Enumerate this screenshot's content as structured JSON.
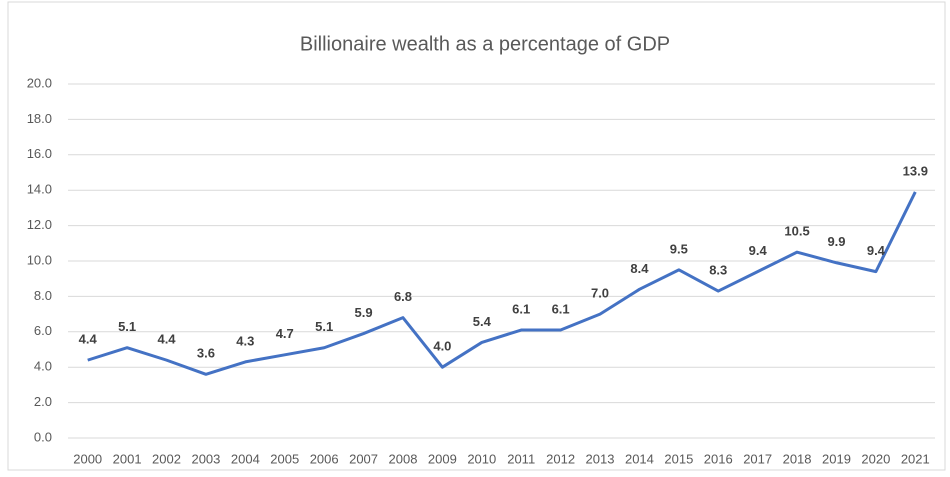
{
  "chart_data": {
    "type": "line",
    "title": "Billionaire wealth as a percentage of GDP",
    "categories": [
      "2000",
      "2001",
      "2002",
      "2003",
      "2004",
      "2005",
      "2006",
      "2007",
      "2008",
      "2009",
      "2010",
      "2011",
      "2012",
      "2013",
      "2014",
      "2015",
      "2016",
      "2017",
      "2018",
      "2019",
      "2020",
      "2021"
    ],
    "series": [
      {
        "color": "#4472c4",
        "values": [
          4.4,
          5.1,
          4.4,
          3.6,
          4.3,
          4.7,
          5.1,
          5.9,
          6.8,
          4.0,
          5.4,
          6.1,
          6.1,
          7.0,
          8.4,
          9.5,
          8.3,
          9.4,
          10.5,
          9.9,
          9.4,
          13.9
        ],
        "value_labels": [
          "4.4",
          "5.1",
          "4.4",
          "3.6",
          "4.3",
          "4.7",
          "5.1",
          "5.9",
          "6.8",
          "4.0",
          "5.4",
          "6.1",
          "6.1",
          "7.0",
          "8.4",
          "9.5",
          "8.3",
          "9.4",
          "10.5",
          "9.9",
          "9.4",
          "13.9"
        ]
      }
    ],
    "ylim": [
      0,
      20
    ],
    "yticks": [
      {
        "value": 0,
        "label": "0.0"
      },
      {
        "value": 2,
        "label": "2.0"
      },
      {
        "value": 4,
        "label": "4.0"
      },
      {
        "value": 6,
        "label": "6.0"
      },
      {
        "value": 8,
        "label": "8.0"
      },
      {
        "value": 10,
        "label": "10.0"
      },
      {
        "value": 12,
        "label": "12.0"
      },
      {
        "value": 14,
        "label": "14.0"
      },
      {
        "value": 16,
        "label": "16.0"
      },
      {
        "value": 18,
        "label": "18.0"
      },
      {
        "value": 20,
        "label": "20.0"
      }
    ],
    "grid": true
  }
}
